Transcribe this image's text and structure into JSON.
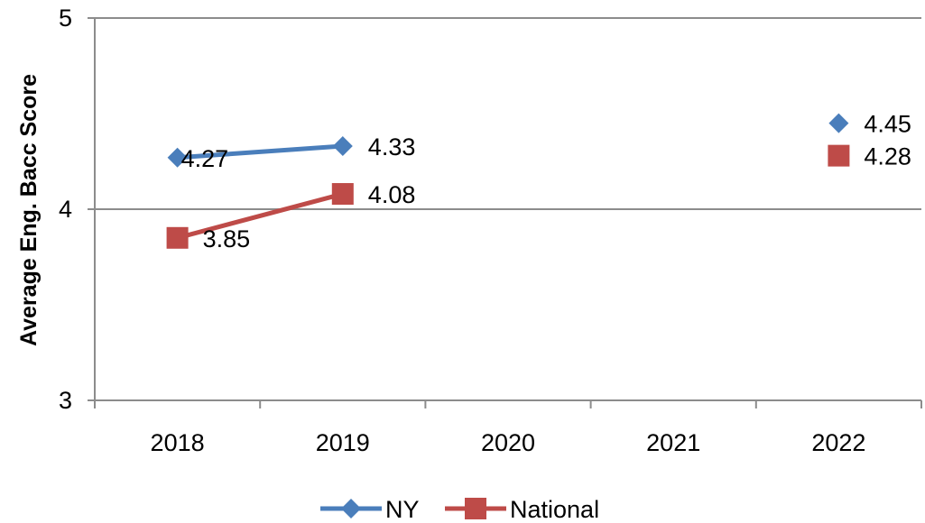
{
  "chart_data": {
    "type": "line",
    "categories": [
      "2018",
      "2019",
      "2020",
      "2021",
      "2022"
    ],
    "ylabel": "Average Eng. Bacc Score",
    "ylim": [
      3,
      5
    ],
    "yticks": [
      "3",
      "4",
      "5"
    ],
    "grid": "horizontal",
    "legend": "bottom",
    "series": [
      {
        "name": "NY",
        "color": "#4a7ebb",
        "marker": "diamond",
        "values": [
          4.27,
          4.33,
          null,
          null,
          4.45
        ],
        "labels": [
          "4.27",
          "4.33",
          "",
          "",
          "4.45"
        ]
      },
      {
        "name": "National",
        "color": "#be4b48",
        "marker": "square",
        "values": [
          3.85,
          4.08,
          null,
          null,
          4.28
        ],
        "labels": [
          "3.85",
          "4.08",
          "",
          "",
          "4.28"
        ]
      }
    ]
  }
}
